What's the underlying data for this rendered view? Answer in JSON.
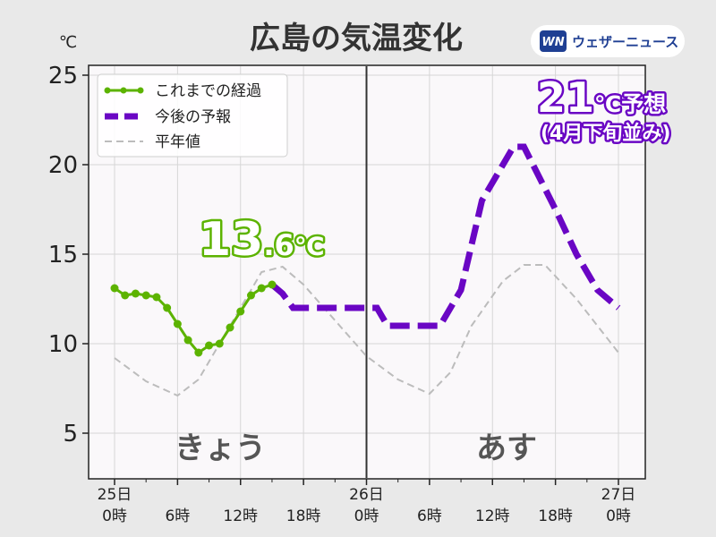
{
  "header": {
    "title": "広島の気温変化",
    "unit": "℃",
    "logo_mark": "WN",
    "logo_text": "ウェザーニュース"
  },
  "legend": {
    "observed": "これまでの経過",
    "forecast": "今後の予報",
    "normal": "平年値"
  },
  "annotations": {
    "current_value": "13",
    "current_decimal": ".6",
    "current_unit": "℃",
    "forecast_value": "21",
    "forecast_unit": "℃予想",
    "forecast_note": "(4月下旬並み)"
  },
  "day_labels": {
    "today": "きょう",
    "tomorrow": "あす"
  },
  "colors": {
    "observed": "#5cb300",
    "forecast": "#6a06c4",
    "normal": "#bcbcbc",
    "divider": "#333333"
  },
  "chart_data": {
    "type": "line",
    "title": "広島の気温変化",
    "ylabel": "℃",
    "ylim": [
      2.5,
      25.5
    ],
    "xlim": [
      0,
      48
    ],
    "yticks": [
      5,
      10,
      15,
      20,
      25
    ],
    "xticks": [
      {
        "x": 0,
        "line1": "25日",
        "line2": "0時"
      },
      {
        "x": 6,
        "line1": "",
        "line2": "6時"
      },
      {
        "x": 12,
        "line1": "",
        "line2": "12時"
      },
      {
        "x": 18,
        "line1": "",
        "line2": "18時"
      },
      {
        "x": 24,
        "line1": "26日",
        "line2": "0時"
      },
      {
        "x": 30,
        "line1": "",
        "line2": "6時"
      },
      {
        "x": 36,
        "line1": "",
        "line2": "12時"
      },
      {
        "x": 42,
        "line1": "",
        "line2": "18時"
      },
      {
        "x": 48,
        "line1": "27日",
        "line2": "0時"
      }
    ],
    "day_boundary_x": 24,
    "series": [
      {
        "name": "これまでの経過",
        "x": [
          0,
          1,
          2,
          3,
          4,
          5,
          6,
          7,
          8,
          9,
          10,
          11,
          12,
          13,
          14,
          15
        ],
        "y": [
          13.1,
          12.7,
          12.8,
          12.7,
          12.6,
          12.0,
          11.1,
          10.2,
          9.5,
          9.9,
          10.0,
          10.9,
          11.8,
          12.7,
          13.1,
          13.3
        ]
      },
      {
        "name": "今後の予報",
        "x": [
          15,
          16,
          17,
          18,
          21,
          24,
          25,
          26,
          27,
          29,
          30,
          31,
          33,
          35,
          36,
          38,
          39,
          42,
          44,
          46,
          48
        ],
        "y": [
          13.3,
          12.8,
          12.0,
          12.0,
          12.0,
          12.0,
          12.0,
          11.0,
          11.0,
          11.0,
          11.0,
          11.0,
          13.0,
          18.0,
          19.0,
          21.0,
          21.0,
          17.5,
          15.0,
          13.0,
          12.0
        ]
      },
      {
        "name": "平年値",
        "x": [
          0,
          3,
          6,
          8,
          12,
          14,
          16,
          18,
          21,
          24,
          27,
          30,
          32,
          34,
          37,
          39,
          41,
          44,
          46,
          48
        ],
        "y": [
          9.2,
          7.9,
          7.1,
          8.0,
          12.0,
          14.0,
          14.3,
          13.3,
          11.3,
          9.3,
          8.0,
          7.2,
          8.4,
          11.0,
          13.5,
          14.4,
          14.4,
          12.5,
          11.0,
          9.5
        ]
      }
    ]
  }
}
